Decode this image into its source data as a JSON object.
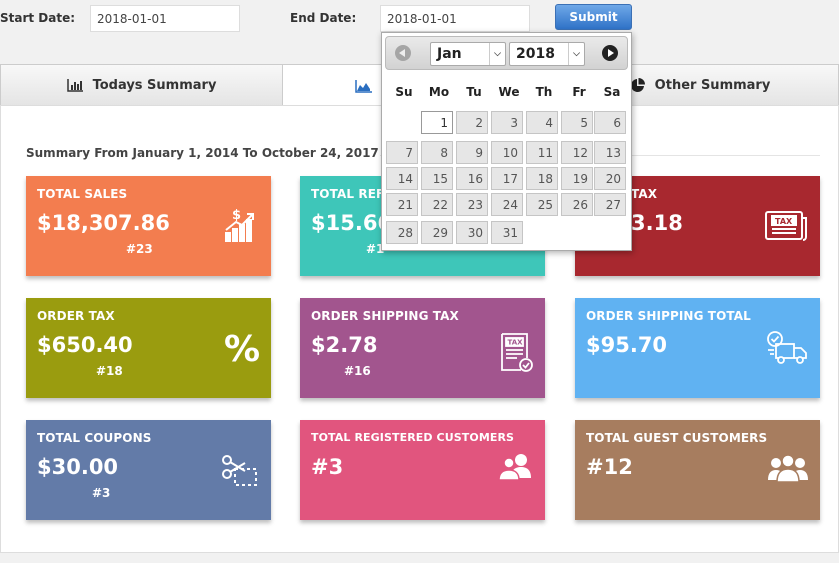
{
  "filters": {
    "start_label": "Start Date:",
    "start_value": "2018-01-01",
    "end_label": "End Date:",
    "end_value": "2018-01-01",
    "submit_label": "Submit"
  },
  "tabs": [
    {
      "label": "Todays Summary",
      "icon": "bar-chart-icon"
    },
    {
      "label": "",
      "icon": "area-chart-icon"
    },
    {
      "label": "Other Summary",
      "icon": "pie-chart-icon"
    }
  ],
  "summary_heading": "Summary From January 1, 2014 To October 24, 2017",
  "cards": [
    {
      "title": "TOTAL SALES",
      "value": "$18,307.86",
      "count": "#23",
      "color": "#f37d4f",
      "icon": "sales-growth-icon"
    },
    {
      "title": "TOTAL REFU",
      "value": "$15.66",
      "count": "#1",
      "color": "#3ec6b9",
      "icon": "refund-icon"
    },
    {
      "title": "TAX",
      "value": "3.18",
      "count": "",
      "color": "#a8282f",
      "icon": "tax-document-icon"
    },
    {
      "title": "ORDER TAX",
      "value": "$650.40",
      "count": "#18",
      "color": "#9a9c0f",
      "icon": "percent-icon"
    },
    {
      "title": "ORDER SHIPPING TAX",
      "value": "$2.78",
      "count": "#16",
      "color": "#a2558e",
      "icon": "tax-receipt-icon"
    },
    {
      "title": "ORDER SHIPPING TOTAL",
      "value": "$95.70",
      "count": "",
      "color": "#60b2f2",
      "icon": "delivery-truck-icon"
    },
    {
      "title": "TOTAL COUPONS",
      "value": "$30.00",
      "count": "#3",
      "color": "#637ba8",
      "icon": "coupon-scissors-icon"
    },
    {
      "title": "TOTAL REGISTERED CUSTOMERS",
      "value": "#3",
      "count": "",
      "color": "#e1557e",
      "icon": "users-icon"
    },
    {
      "title": "TOTAL GUEST CUSTOMERS",
      "value": "#12",
      "count": "",
      "color": "#a77d5f",
      "icon": "guest-users-icon"
    }
  ],
  "datepicker": {
    "month": "Jan",
    "year": "2018",
    "weekdays": [
      "Su",
      "Mo",
      "Tu",
      "We",
      "Th",
      "Fr",
      "Sa"
    ],
    "first_weekday": 1,
    "days_in_month": 31,
    "current_day": 1
  }
}
